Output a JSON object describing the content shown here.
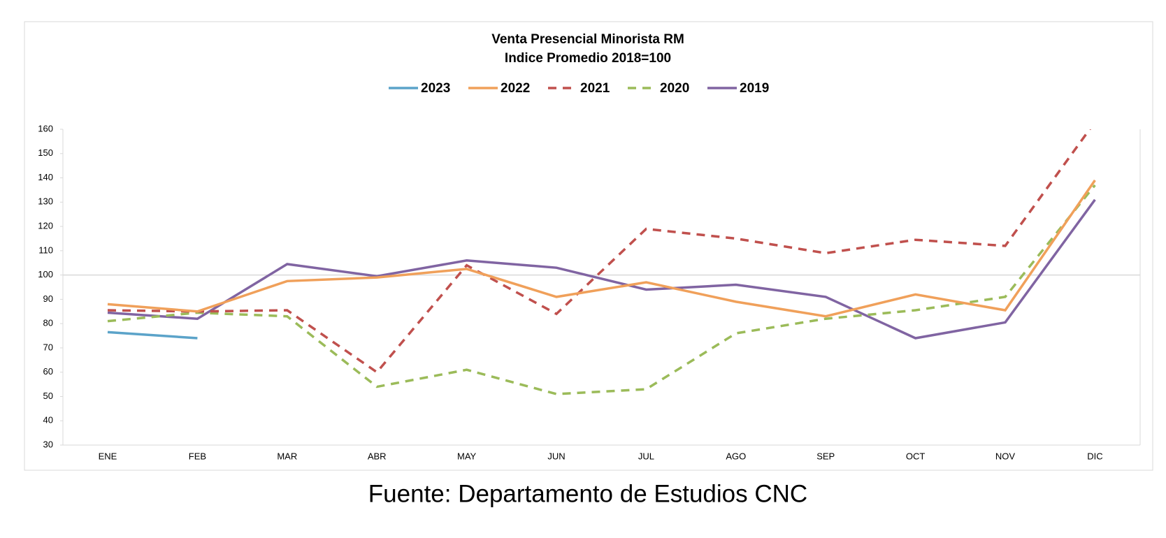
{
  "chart_data": {
    "type": "line",
    "title": "Venta Presencial Minorista RM",
    "subtitle": "Indice Promedio 2018=100",
    "source": "Fuente: Departamento de Estudios CNC",
    "categories": [
      "ENE",
      "FEB",
      "MAR",
      "ABR",
      "MAY",
      "JUN",
      "JUL",
      "AGO",
      "SEP",
      "OCT",
      "NOV",
      "DIC"
    ],
    "series": [
      {
        "name": "2023",
        "color": "#5ba3c9",
        "dashed": false,
        "values": [
          76.5,
          74,
          null,
          null,
          null,
          null,
          null,
          null,
          null,
          null,
          null,
          null
        ]
      },
      {
        "name": "2022",
        "color": "#f0a05a",
        "dashed": false,
        "values": [
          88,
          85,
          97.5,
          99,
          102.5,
          91,
          97,
          89,
          83,
          92,
          85.5,
          139
        ]
      },
      {
        "name": "2021",
        "color": "#c0504d",
        "dashed": true,
        "values": [
          85.5,
          85,
          85.5,
          60,
          104,
          84,
          119,
          115,
          109,
          114.5,
          112,
          163
        ]
      },
      {
        "name": "2020",
        "color": "#9bbb59",
        "dashed": true,
        "values": [
          81,
          84.5,
          83,
          54,
          61,
          51,
          53,
          76,
          82,
          85.5,
          91,
          137
        ]
      },
      {
        "name": "2019",
        "color": "#8064a2",
        "dashed": false,
        "values": [
          84.5,
          82,
          104.5,
          99.5,
          106,
          103,
          94,
          96,
          91,
          74,
          80.5,
          131
        ]
      }
    ],
    "ylim": [
      30,
      160
    ],
    "yticks": [
      30,
      40,
      50,
      60,
      70,
      80,
      90,
      100,
      110,
      120,
      130,
      140,
      150,
      160
    ],
    "hline": 100,
    "legend": "top"
  }
}
